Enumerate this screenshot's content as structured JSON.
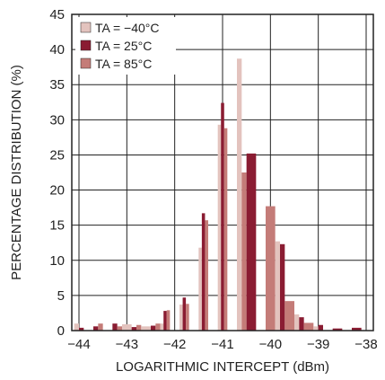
{
  "chart_data": {
    "type": "bar",
    "xlabel": "LOGARITHMIC INTERCEPT (dBm)",
    "ylabel": "PERCENTAGE DISTRIBUTION (%)",
    "xlim": [
      -44.15,
      -37.85
    ],
    "ylim": [
      0,
      45
    ],
    "x_ticks": [
      -44,
      -43,
      -42,
      -41,
      -40,
      -39,
      -38
    ],
    "x_tick_labels": [
      "−44",
      "−43",
      "−42",
      "−41",
      "−40",
      "−39",
      "−38"
    ],
    "y_ticks": [
      0,
      5,
      10,
      15,
      20,
      25,
      30,
      35,
      40,
      45
    ],
    "grid": true,
    "legend_position": "top-left",
    "bin_width": 0.2,
    "bin_centers": [
      -44.0,
      -43.8,
      -43.6,
      -43.4,
      -43.2,
      -43.0,
      -42.8,
      -42.6,
      -42.4,
      -42.2,
      -42.0,
      -41.8,
      -41.6,
      -41.4,
      -41.2,
      -41.0,
      -40.8,
      -40.6,
      -40.4,
      -40.2,
      -40.0,
      -39.8,
      -39.6,
      -39.4,
      -39.2,
      -39.0,
      -38.8,
      -38.6,
      -38.4,
      -38.2,
      -38.0
    ],
    "series": [
      {
        "name": "TA = −40°C",
        "color": "#e3c3be",
        "values": [
          1.0,
          0,
          0,
          0,
          0,
          0.9,
          0,
          0.6,
          0,
          1.0,
          0,
          3.7,
          0,
          11.8,
          0,
          29.3,
          0,
          38.7,
          0,
          0,
          0,
          12.7,
          0,
          2.3,
          0,
          0.6,
          0,
          0,
          0,
          0,
          0
        ]
      },
      {
        "name": "TA = 25°C",
        "color": "#8a1c32",
        "values": [
          0.4,
          0,
          0.6,
          0,
          1.0,
          0,
          0.5,
          0,
          0.7,
          2.8,
          0,
          4.7,
          0,
          16.7,
          0,
          32.4,
          0,
          0,
          25.2,
          0,
          0,
          12.3,
          0,
          1.9,
          0,
          0.8,
          0,
          0.3,
          0,
          0.4,
          0
        ]
      },
      {
        "name": "TA = 85°C",
        "color": "#c47c78",
        "values": [
          0,
          0,
          1.0,
          0,
          0.6,
          0,
          0.8,
          0,
          1.0,
          2.9,
          0,
          3.8,
          0,
          15.7,
          0,
          28.8,
          0,
          22.5,
          0,
          0,
          17.7,
          0,
          4.2,
          0,
          1.1,
          0,
          0,
          0,
          0,
          0,
          0
        ]
      }
    ]
  }
}
